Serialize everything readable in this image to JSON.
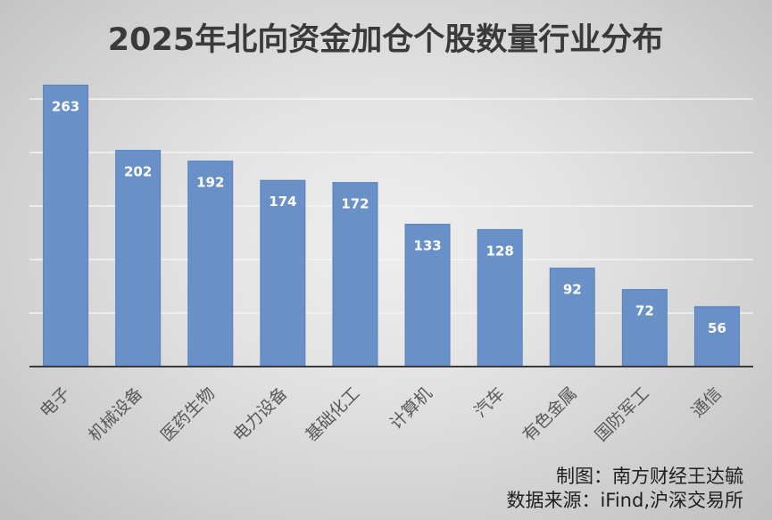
{
  "chart_data": {
    "type": "bar",
    "title": "2025年北向资金加仓个股数量行业分布",
    "categories": [
      "电子",
      "机械设备",
      "医药生物",
      "电力设备",
      "基础化工",
      "计算机",
      "汽车",
      "有色金属",
      "国防军工",
      "通信"
    ],
    "values": [
      263,
      202,
      192,
      174,
      172,
      133,
      128,
      92,
      72,
      56
    ],
    "ylim": [
      0,
      300
    ],
    "grid": true,
    "legend": "none",
    "data_labels": true,
    "colors": {
      "bar": "#6991c8"
    }
  },
  "footer": {
    "credit": "制图：南方财经王达毓",
    "source": "数据来源：iFind,沪深交易所"
  }
}
